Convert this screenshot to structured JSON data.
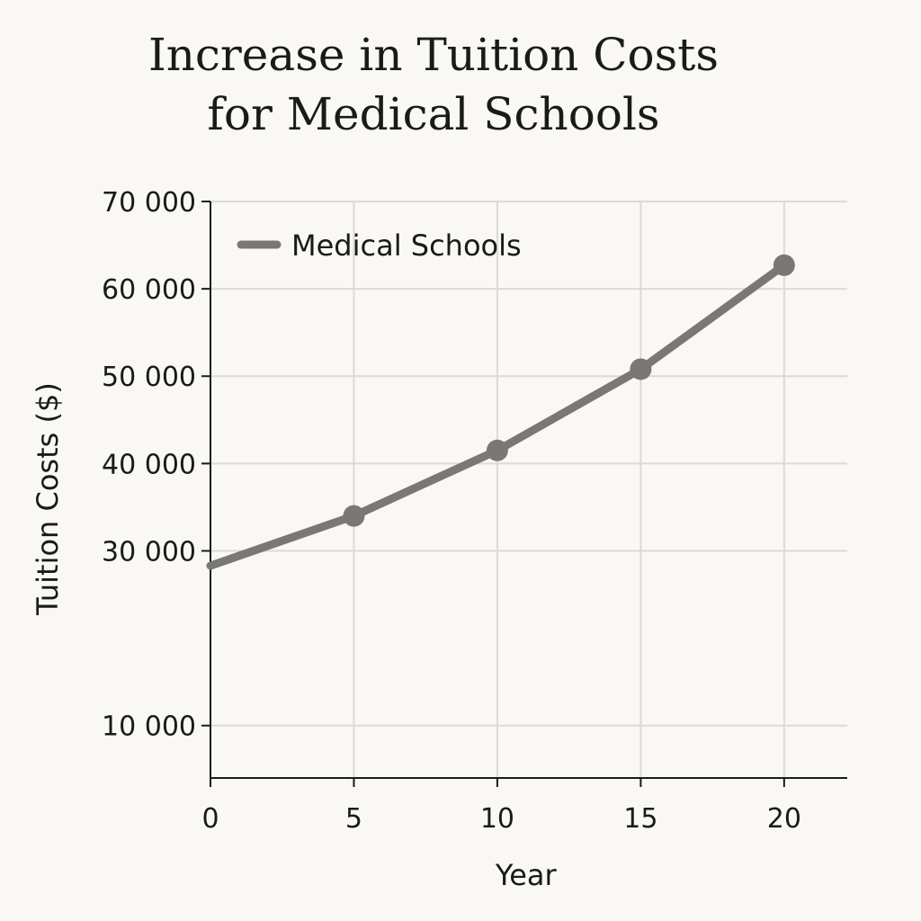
{
  "chart_data": {
    "type": "line",
    "title": "Increase in Tuition Costs for Medical Schools",
    "title_lines": [
      "Increase in Tuition Costs",
      "for Medical Schools"
    ],
    "xlabel": "Year",
    "ylabel": "Tuition Costs ($)",
    "x_ticks": [
      0,
      5,
      10,
      15,
      20
    ],
    "x_tick_labels": [
      "0",
      "5",
      "10",
      "15",
      "20"
    ],
    "y_ticks": [
      10000,
      30000,
      40000,
      50000,
      60000,
      70000
    ],
    "y_tick_labels": [
      "10 000",
      "30 000",
      "40 000",
      "50 000",
      "60 000",
      "70 000"
    ],
    "xlim": [
      0,
      22.2
    ],
    "ylim": [
      4000,
      70000
    ],
    "grid": true,
    "legend_position": "top-left",
    "series": [
      {
        "name": "Medical Schools",
        "color": "#7a7875",
        "x": [
          0,
          5,
          10,
          15,
          20
        ],
        "y": [
          28300,
          34000,
          41500,
          50800,
          62700
        ],
        "markers_at": [
          5,
          10,
          15,
          20
        ]
      }
    ]
  }
}
